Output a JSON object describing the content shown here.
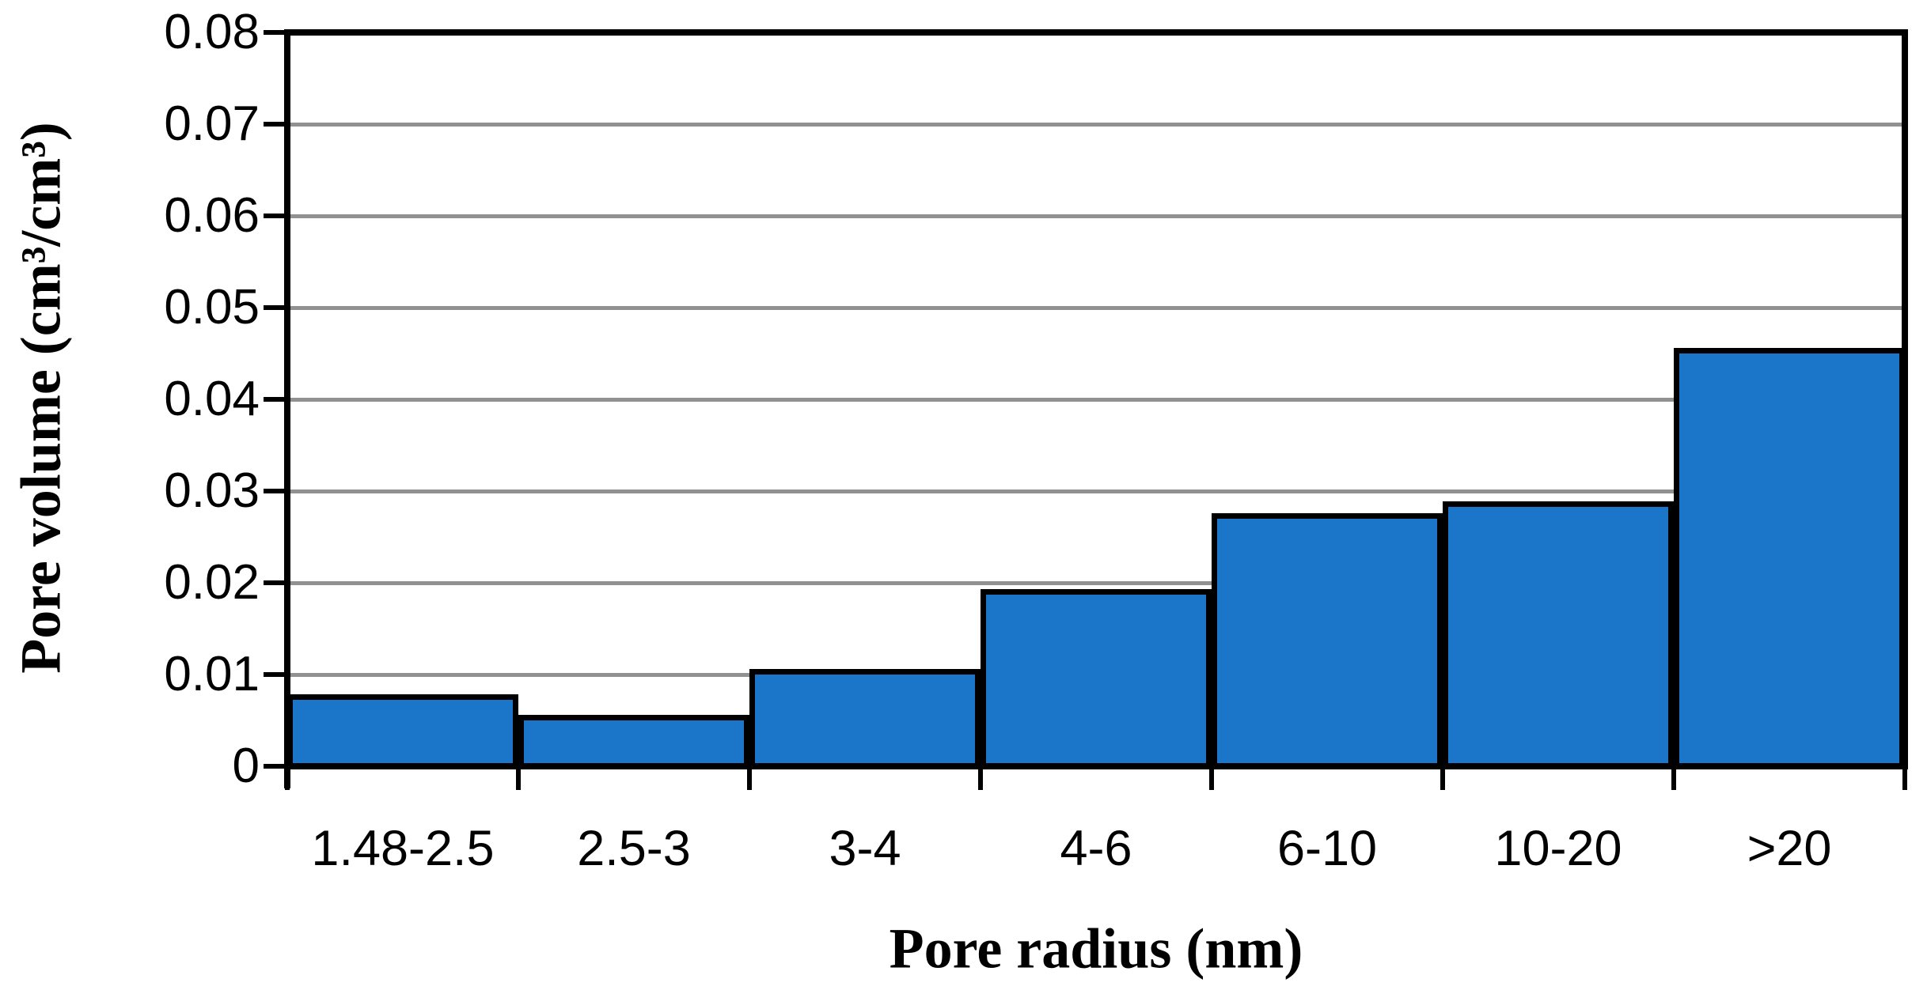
{
  "chart_data": {
    "type": "bar",
    "style": "histogram-touching-bars",
    "title": "",
    "xlabel": "Pore radius (nm)",
    "ylabel": "Pore volume (cm³/cm³)",
    "categories": [
      "1.48-2.5",
      "2.5-3",
      "3-4",
      "4-6",
      "6-10",
      "10-20",
      ">20"
    ],
    "values": [
      0.0075,
      0.0053,
      0.0103,
      0.019,
      0.0272,
      0.0285,
      0.0453
    ],
    "ylim": [
      0,
      0.08
    ],
    "ytick_step": 0.01,
    "ytick_labels": [
      "0",
      "0.01",
      "0.02",
      "0.03",
      "0.04",
      "0.05",
      "0.06",
      "0.07",
      "0.08"
    ],
    "grid": "horizontal-gray-lines",
    "legend": "none",
    "colors": {
      "bar_fill": "#1b75c8",
      "bar_border": "#000000",
      "gridline": "#919191",
      "axis": "#000000",
      "text": "#000000",
      "background": "#ffffff"
    }
  }
}
